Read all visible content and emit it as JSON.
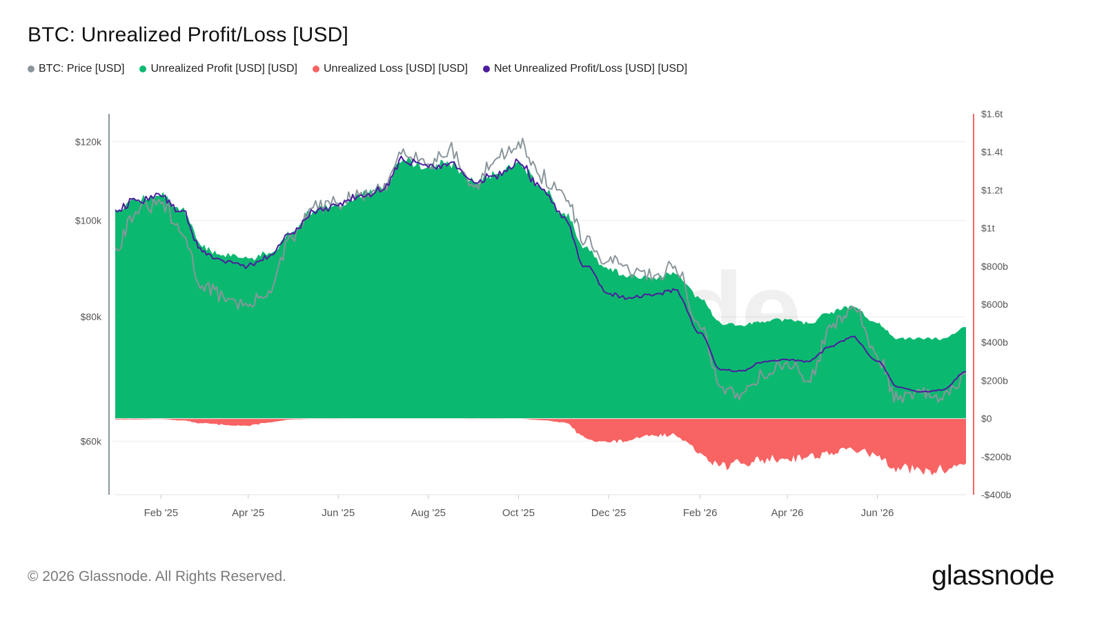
{
  "title": "BTC: Unrealized Profit/Loss [USD]",
  "legend": [
    {
      "label": "BTC: Price [USD]",
      "color": "#8a969b"
    },
    {
      "label": "Unrealized Profit [USD] [USD]",
      "color": "#0bb870"
    },
    {
      "label": "Unrealized Loss [USD] [USD]",
      "color": "#f86363"
    },
    {
      "label": "Net Unrealized Profit/Loss [USD] [USD]",
      "color": "#4b1c9e"
    }
  ],
  "watermark": "glassnode",
  "footer": "© 2026 Glassnode. All Rights Reserved.",
  "logo": "glassnode",
  "chart_data": {
    "type": "area",
    "title": "BTC: Unrealized Profit/Loss [USD]",
    "x_ticks": [
      "Feb '25",
      "Apr '25",
      "Jun '25",
      "Aug '25",
      "Oct '25",
      "Dec '25",
      "Feb '26",
      "Apr '26",
      "Jun '26"
    ],
    "x_tick_dates": [
      "2025-02-01",
      "2025-04-01",
      "2025-06-01",
      "2025-08-01",
      "2025-10-01",
      "2025-12-01",
      "2026-02-01",
      "2026-04-01",
      "2026-06-01"
    ],
    "x_range": [
      "2025-01-01",
      "2026-07-31"
    ],
    "y_left": {
      "ticks": [
        "$60k",
        "$80k",
        "$100k",
        "$120k"
      ],
      "tick_values": [
        60000,
        80000,
        100000,
        120000
      ],
      "range": [
        53000,
        128000
      ],
      "scale": "log"
    },
    "y_right": {
      "ticks": [
        "-$400b",
        "-$200b",
        "$0",
        "$200b",
        "$400b",
        "$600b",
        "$800b",
        "$1t",
        "$1.2t",
        "$1.4t",
        "$1.6t"
      ],
      "tick_values": [
        -400,
        -200,
        0,
        200,
        400,
        600,
        800,
        1000,
        1200,
        1400,
        1600
      ],
      "unit": "billions USD",
      "range": [
        -400,
        1600
      ]
    },
    "dates": [
      "2025-01-01",
      "2025-01-15",
      "2025-02-01",
      "2025-02-15",
      "2025-03-01",
      "2025-03-15",
      "2025-04-01",
      "2025-04-15",
      "2025-05-01",
      "2025-05-15",
      "2025-06-01",
      "2025-06-15",
      "2025-07-01",
      "2025-07-15",
      "2025-08-01",
      "2025-08-15",
      "2025-09-01",
      "2025-09-15",
      "2025-10-01",
      "2025-10-15",
      "2025-11-01",
      "2025-11-15",
      "2025-12-01",
      "2025-12-15",
      "2026-01-01",
      "2026-01-15",
      "2026-02-01",
      "2026-02-15",
      "2026-03-01",
      "2026-03-15",
      "2026-04-01",
      "2026-04-15",
      "2026-05-01",
      "2026-05-15",
      "2026-06-01",
      "2026-06-15",
      "2026-07-01",
      "2026-07-15",
      "2026-07-31"
    ],
    "series": [
      {
        "name": "BTC: Price [USD]",
        "axis": "left",
        "type": "line",
        "color": "#8a969b",
        "values": [
          94000,
          102000,
          104000,
          97000,
          86000,
          84000,
          82000,
          85000,
          96000,
          103000,
          104000,
          106000,
          107000,
          118000,
          114000,
          118000,
          108000,
          115000,
          120000,
          111000,
          106000,
          95000,
          91000,
          89000,
          88000,
          90000,
          78000,
          68000,
          67000,
          70000,
          72000,
          69000,
          78000,
          82000,
          73000,
          66000,
          67000,
          66000,
          70000
        ]
      },
      {
        "name": "Unrealized Profit [USD] [USD]",
        "axis": "right",
        "type": "area",
        "color": "#0bb870",
        "values": [
          1100,
          1150,
          1170,
          1100,
          900,
          860,
          840,
          870,
          980,
          1090,
          1120,
          1170,
          1200,
          1360,
          1320,
          1340,
          1240,
          1280,
          1350,
          1230,
          1080,
          900,
          780,
          750,
          740,
          760,
          630,
          500,
          490,
          510,
          520,
          500,
          560,
          590,
          500,
          420,
          420,
          420,
          480
        ]
      },
      {
        "name": "Unrealized Loss [USD] [USD]",
        "axis": "right",
        "type": "area",
        "color": "#f86363",
        "values": [
          -5,
          -5,
          -3,
          -10,
          -25,
          -32,
          -38,
          -20,
          -5,
          -2,
          -2,
          -1,
          -1,
          -1,
          -1,
          -1,
          -2,
          -2,
          -1,
          -8,
          -20,
          -100,
          -125,
          -115,
          -90,
          -85,
          -180,
          -245,
          -240,
          -215,
          -210,
          -200,
          -180,
          -160,
          -200,
          -255,
          -280,
          -270,
          -235
        ]
      },
      {
        "name": "Net Unrealized Profit/Loss [USD] [USD]",
        "axis": "right",
        "type": "line",
        "color": "#4b1c9e",
        "values": [
          1095,
          1145,
          1167,
          1090,
          875,
          828,
          802,
          850,
          975,
          1088,
          1118,
          1169,
          1199,
          1359,
          1319,
          1339,
          1238,
          1278,
          1349,
          1222,
          1060,
          800,
          655,
          635,
          650,
          675,
          450,
          255,
          250,
          295,
          310,
          300,
          380,
          430,
          300,
          165,
          140,
          150,
          245
        ]
      }
    ],
    "grid": "horizontal",
    "legend_position": "top-left"
  }
}
